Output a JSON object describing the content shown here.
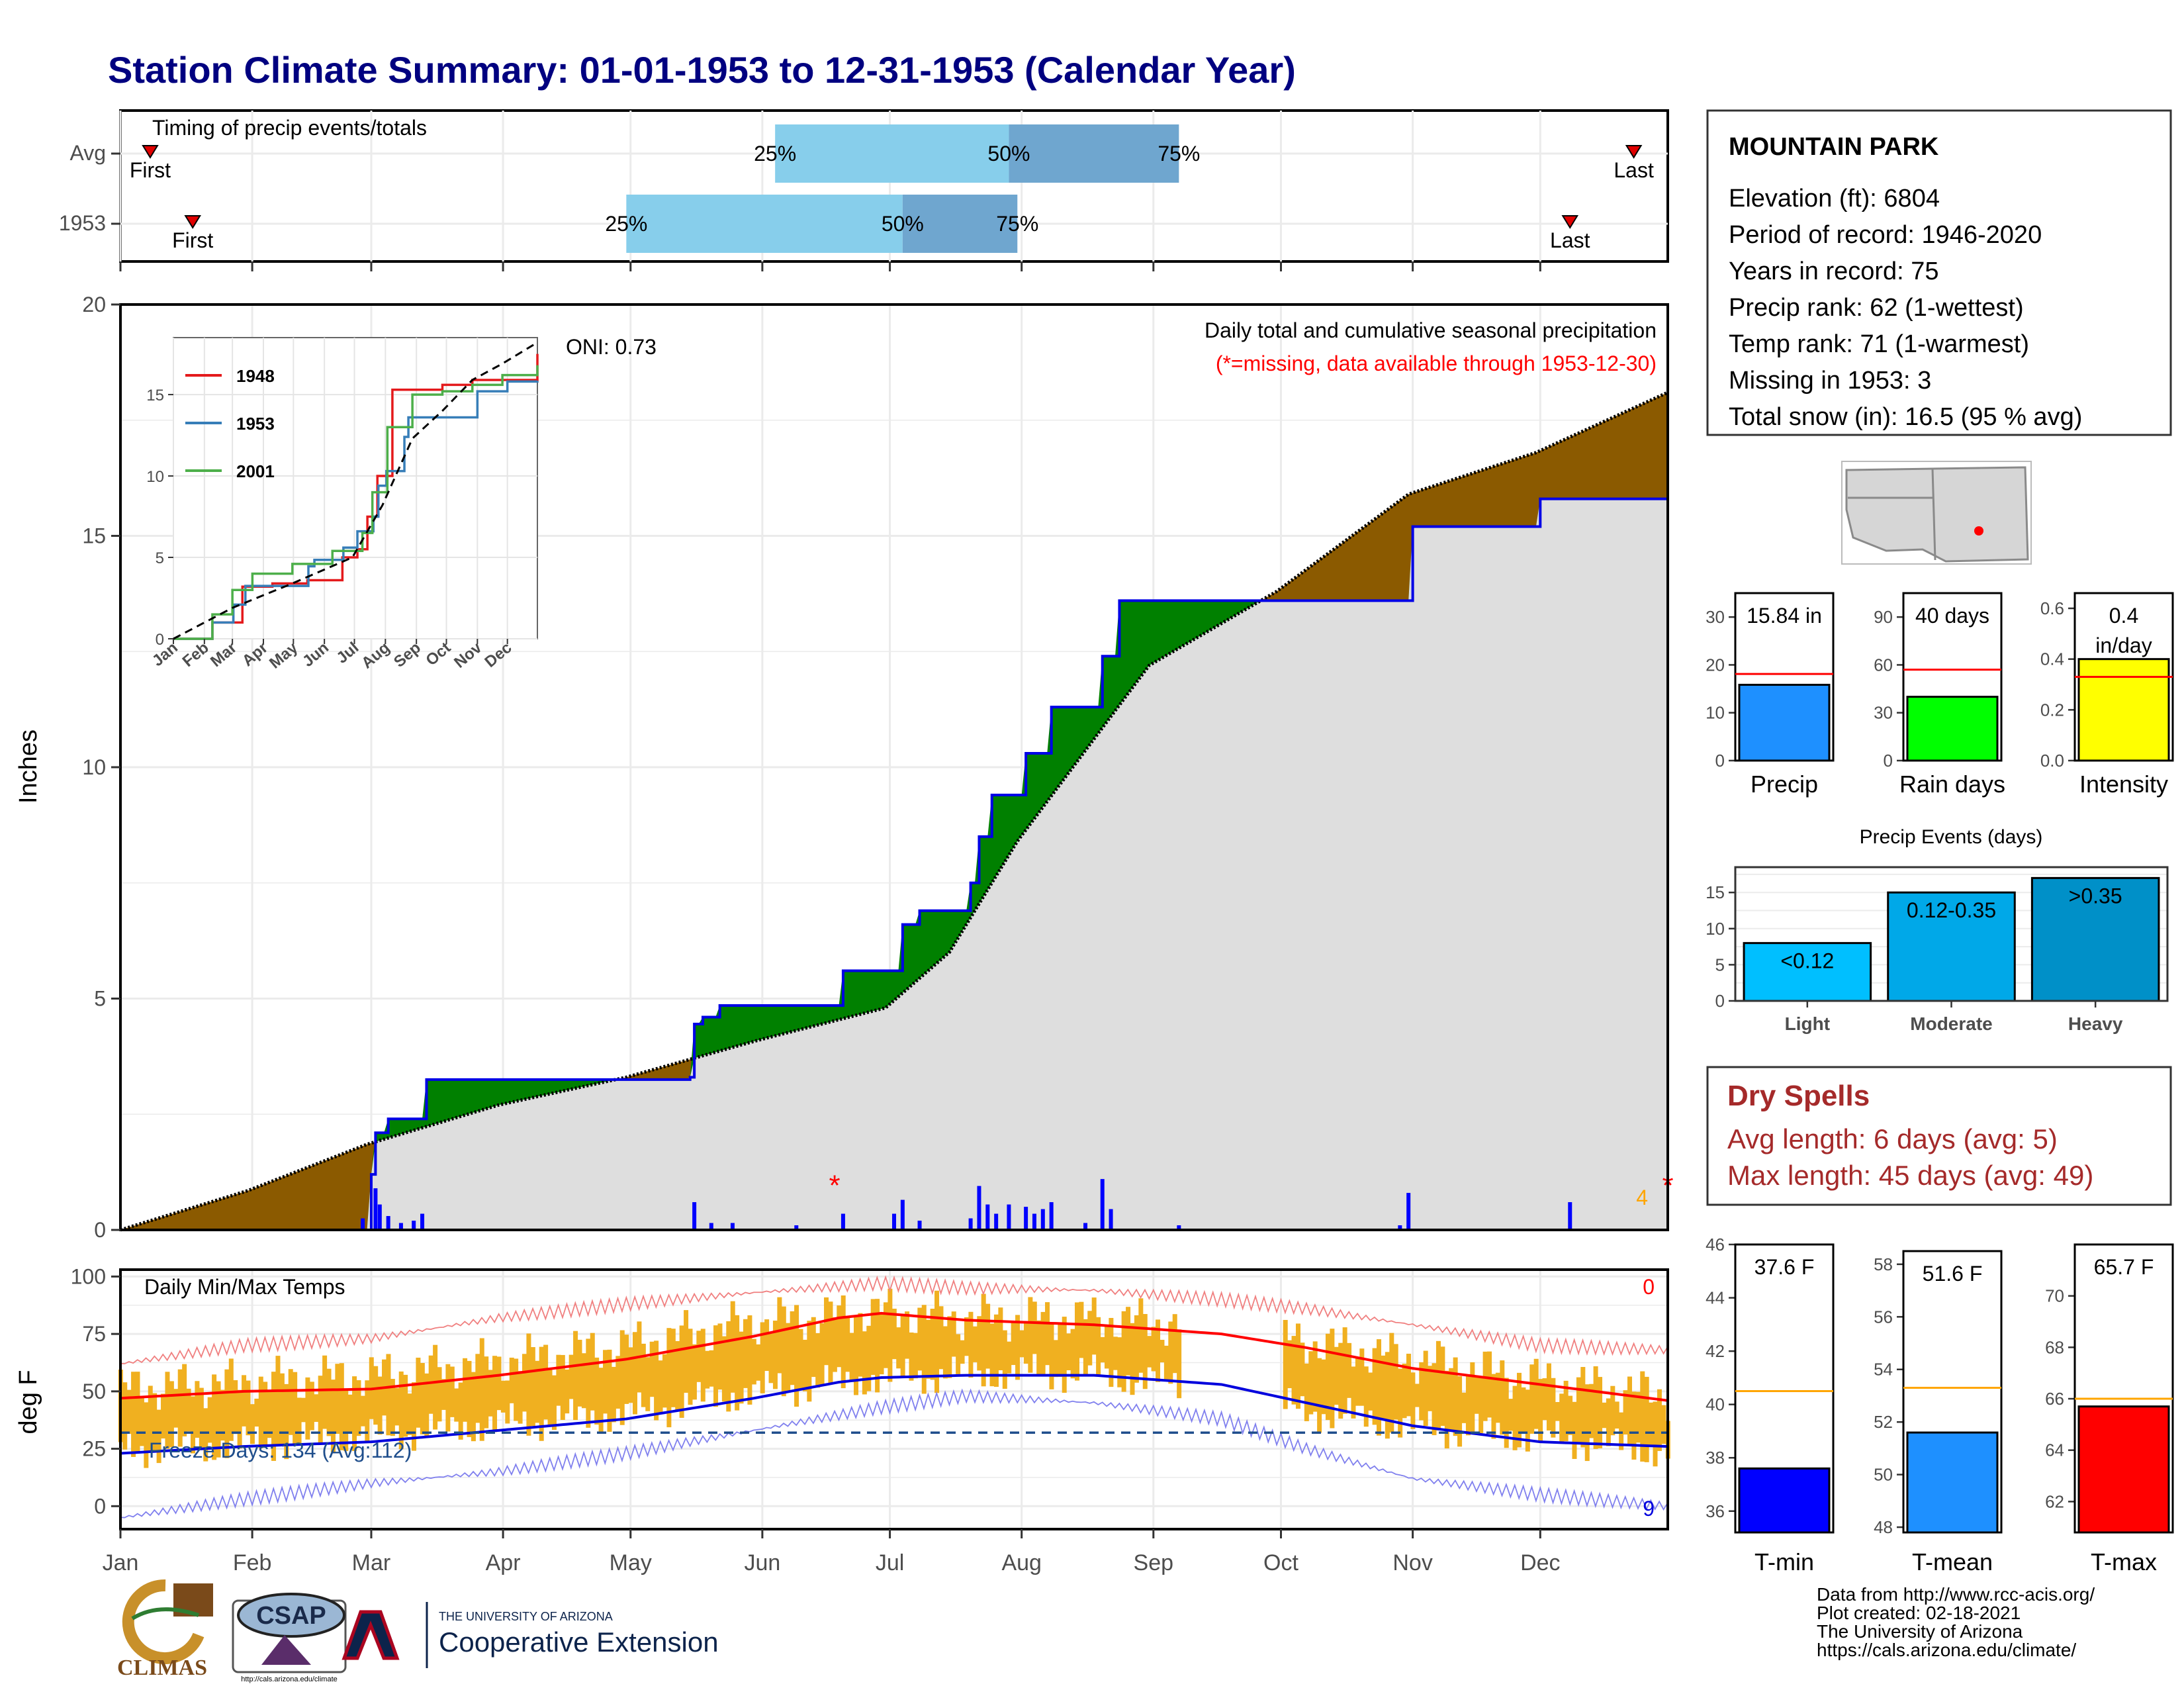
{
  "title": "Station Climate Summary: 01-01-1953 to 12-31-1953 (Calendar Year)",
  "timing": {
    "label": "Timing of precip events/totals",
    "rows": [
      {
        "name": "Avg",
        "first_day": 8,
        "p25_day": 155,
        "p50_day": 210,
        "p75_day": 250,
        "last_day": 357
      },
      {
        "name": "1953",
        "first_day": 18,
        "p25_day": 120,
        "p50_day": 185,
        "p75_day": 212,
        "last_day": 342
      }
    ],
    "first_label": "First",
    "last_label": "Last",
    "pct_labels": [
      "25%",
      "50%",
      "75%"
    ],
    "colors": {
      "early": "#87ceeb",
      "late": "#6fa6cf",
      "marker": "#e00000"
    }
  },
  "station": {
    "name": "MOUNTAIN PARK",
    "lines": [
      "Elevation (ft): 6804",
      "Period of record: 1946-2020",
      "Years in record: 75",
      "Precip rank: 62 (1-wettest)",
      "Temp rank: 71 (1-warmest)",
      "Missing in 1953: 3",
      "Total snow (in): 16.5 (95 % avg)"
    ]
  },
  "chart_data": [
    {
      "id": "cumulative-precip",
      "type": "area",
      "ylabel": "Inches",
      "ylim": [
        0,
        20
      ],
      "yticks": [
        0,
        5,
        10,
        15,
        20
      ],
      "months": [
        "Jan",
        "Feb",
        "Mar",
        "Apr",
        "May",
        "Jun",
        "Jul",
        "Aug",
        "Sep",
        "Oct",
        "Nov",
        "Dec"
      ],
      "annotation_title": "Daily total and cumulative seasonal precipitation",
      "annotation_missing": "(*=missing, data available through 1953-12-30)",
      "oni_label": "ONI: 0.73",
      "corner_count": "4",
      "series": [
        {
          "name": "observed cumulative",
          "x_day": [
            1,
            60,
            61,
            64,
            73,
            135,
            136,
            138,
            142,
            170,
            171,
            183,
            185,
            189,
            201,
            203,
            206,
            214,
            220,
            230,
            232,
            236,
            274,
            305,
            335,
            365
          ],
          "y": [
            0.0,
            1.2,
            2.1,
            2.4,
            3.25,
            3.3,
            4.45,
            4.6,
            4.85,
            4.85,
            5.6,
            5.6,
            6.6,
            6.9,
            7.5,
            8.5,
            9.4,
            10.3,
            11.3,
            11.3,
            12.4,
            13.6,
            13.6,
            15.2,
            15.8,
            15.84
          ]
        },
        {
          "name": "average cumulative",
          "x_day": [
            1,
            31,
            59,
            90,
            120,
            151,
            181,
            196,
            212,
            243,
            273,
            304,
            334,
            365
          ],
          "y": [
            0.0,
            0.85,
            1.85,
            2.7,
            3.3,
            4.1,
            4.8,
            6.0,
            8.4,
            12.2,
            13.8,
            15.9,
            16.8,
            18.1
          ]
        }
      ],
      "daily_precip": [
        {
          "day": 58,
          "value": 0.25
        },
        {
          "day": 61,
          "value": 0.9
        },
        {
          "day": 62,
          "value": 0.55
        },
        {
          "day": 64,
          "value": 0.3
        },
        {
          "day": 67,
          "value": 0.15
        },
        {
          "day": 70,
          "value": 0.2
        },
        {
          "day": 72,
          "value": 0.35
        },
        {
          "day": 136,
          "value": 0.6
        },
        {
          "day": 140,
          "value": 0.15
        },
        {
          "day": 145,
          "value": 0.15
        },
        {
          "day": 160,
          "value": 0.1
        },
        {
          "day": 171,
          "value": 0.35
        },
        {
          "day": 183,
          "value": 0.35
        },
        {
          "day": 185,
          "value": 0.65
        },
        {
          "day": 189,
          "value": 0.2
        },
        {
          "day": 201,
          "value": 0.25
        },
        {
          "day": 203,
          "value": 0.95
        },
        {
          "day": 205,
          "value": 0.55
        },
        {
          "day": 207,
          "value": 0.35
        },
        {
          "day": 210,
          "value": 0.55
        },
        {
          "day": 214,
          "value": 0.5
        },
        {
          "day": 216,
          "value": 0.35
        },
        {
          "day": 218,
          "value": 0.45
        },
        {
          "day": 220,
          "value": 0.6
        },
        {
          "day": 228,
          "value": 0.15
        },
        {
          "day": 232,
          "value": 1.1
        },
        {
          "day": 234,
          "value": 0.45
        },
        {
          "day": 250,
          "value": 0.1
        },
        {
          "day": 302,
          "value": 0.1
        },
        {
          "day": 304,
          "value": 0.8
        },
        {
          "day": 342,
          "value": 0.6
        }
      ],
      "missing_days": [
        169,
        365
      ],
      "colors": {
        "surplus": "#008000",
        "deficit": "#8b5a00",
        "base": "#dedede",
        "observed_line": "#0000e6",
        "bars": "#0000ff",
        "missing": "#ff0000"
      }
    },
    {
      "id": "inset-cumulative",
      "type": "line",
      "months": [
        "Jan",
        "Feb",
        "Mar",
        "Apr",
        "May",
        "Jun",
        "Jul",
        "Aug",
        "Sep",
        "Oct",
        "Nov",
        "Dec"
      ],
      "yticks": [
        0,
        5,
        10,
        15
      ],
      "ylim": [
        0,
        18.5
      ],
      "series": [
        {
          "name": "1948",
          "color": "#e41a1c",
          "x_day": [
            1,
            40,
            70,
            100,
            135,
            170,
            185,
            195,
            205,
            220,
            240,
            270,
            300,
            340,
            365
          ],
          "y": [
            0,
            1.0,
            3.2,
            3.4,
            3.6,
            5.0,
            5.5,
            7.5,
            10.0,
            15.3,
            15.3,
            15.6,
            15.9,
            15.9,
            17.5
          ]
        },
        {
          "name": "1953",
          "color": "#377eb8",
          "x_day": [
            1,
            40,
            61,
            73,
            136,
            142,
            171,
            185,
            201,
            206,
            214,
            232,
            236,
            274,
            305,
            335,
            365
          ],
          "y": [
            0,
            1.0,
            2.1,
            3.25,
            4.45,
            4.85,
            5.6,
            6.6,
            7.5,
            9.4,
            10.3,
            12.4,
            13.6,
            13.6,
            15.2,
            15.8,
            15.84
          ]
        },
        {
          "name": "2001",
          "color": "#4daf4a",
          "x_day": [
            1,
            40,
            60,
            80,
            120,
            160,
            190,
            200,
            215,
            240,
            270,
            300,
            330,
            365
          ],
          "y": [
            0,
            1.5,
            3.0,
            4.0,
            4.6,
            5.4,
            6.5,
            9.0,
            13.0,
            15.0,
            15.2,
            15.6,
            16.2,
            16.8
          ]
        },
        {
          "name": "average",
          "color": "#000000",
          "x_day": [
            1,
            60,
            120,
            180,
            210,
            240,
            270,
            300,
            330,
            365
          ],
          "y": [
            0,
            1.9,
            3.4,
            5.0,
            8.2,
            12.3,
            14.0,
            15.9,
            16.9,
            18.2
          ]
        }
      ]
    },
    {
      "id": "daily-temps",
      "type": "bar",
      "title": "Daily Min/Max Temps",
      "ylabel": "deg F",
      "ylim": [
        -10,
        103
      ],
      "yticks": [
        0,
        25,
        50,
        75,
        100
      ],
      "freeze_label": "Freeze Days: 134 (Avg:112)",
      "freeze_line": 32,
      "count_top": "0",
      "count_bottom": "9",
      "normal_max": {
        "x_day": [
          1,
          30,
          60,
          90,
          120,
          150,
          170,
          180,
          200,
          230,
          260,
          280,
          305,
          335,
          365
        ],
        "y": [
          47,
          50,
          51,
          57,
          64,
          74,
          82,
          84,
          81,
          79,
          75,
          69,
          60,
          53,
          46
        ]
      },
      "normal_min": {
        "x_day": [
          1,
          30,
          60,
          90,
          120,
          150,
          170,
          180,
          200,
          230,
          260,
          280,
          305,
          335,
          365
        ],
        "y": [
          23,
          26,
          28,
          33,
          38,
          47,
          54,
          56,
          57,
          57,
          53,
          45,
          35,
          28,
          26
        ]
      },
      "record_max": {
        "x_day": [
          1,
          30,
          60,
          90,
          120,
          150,
          180,
          200,
          230,
          260,
          280,
          305,
          335,
          365
        ],
        "y": [
          62,
          70,
          73,
          82,
          88,
          93,
          97,
          95,
          94,
          90,
          86,
          79,
          70,
          68
        ]
      },
      "record_min": {
        "x_day": [
          1,
          30,
          60,
          90,
          120,
          150,
          180,
          200,
          230,
          260,
          280,
          305,
          335,
          365
        ],
        "y": [
          -5,
          3,
          10,
          15,
          23,
          33,
          43,
          48,
          45,
          38,
          25,
          12,
          5,
          0
        ]
      },
      "observed_max": {
        "x_day": [
          1,
          30,
          60,
          90,
          120,
          150,
          180,
          200,
          230,
          250,
          275,
          305,
          335,
          365
        ],
        "y": [
          51,
          54,
          57,
          63,
          70,
          80,
          85,
          82,
          82,
          79,
          73,
          64,
          55,
          48
        ]
      },
      "observed_min": {
        "x_day": [
          1,
          30,
          60,
          90,
          120,
          150,
          180,
          200,
          230,
          250,
          275,
          305,
          335,
          365
        ],
        "y": [
          25,
          27,
          31,
          36,
          40,
          50,
          56,
          58,
          58,
          53,
          43,
          35,
          30,
          24
        ]
      },
      "missing_range_days": [
        251,
        274
      ],
      "colors": {
        "bars": "#f0b020",
        "normal_max": "#ff0000",
        "normal_min": "#0000dd",
        "record_max": "#f08080",
        "record_min": "#8080ee",
        "freeze": "#1f4e8c"
      }
    },
    {
      "id": "precip-gauge",
      "type": "bar",
      "label": "Precip",
      "value": 15.84,
      "value_label": "15.84 in",
      "avg": 18.1,
      "ylim": [
        0,
        35
      ],
      "yticks": [
        0,
        10,
        20,
        30
      ],
      "color": "#1e90ff"
    },
    {
      "id": "raindays-gauge",
      "type": "bar",
      "label": "Rain days",
      "value": 40,
      "value_label": "40 days",
      "avg": 57,
      "ylim": [
        0,
        105
      ],
      "yticks": [
        0,
        30,
        60,
        90
      ],
      "color": "#00ff00"
    },
    {
      "id": "intensity-gauge",
      "type": "bar",
      "label": "Intensity",
      "value": 0.4,
      "value_label_1": "0.4",
      "value_label_2": "in/day",
      "avg": 0.33,
      "ylim": [
        0,
        0.66
      ],
      "yticks": [
        0.0,
        0.2,
        0.4,
        0.6
      ],
      "ytick_labels": [
        "0.0",
        "0.2",
        "0.4",
        "0.6"
      ],
      "color": "#ffff00"
    },
    {
      "id": "precip-events",
      "type": "bar",
      "title": "Precip Events (days)",
      "categories": [
        "Light",
        "Moderate",
        "Heavy"
      ],
      "values": [
        8,
        15,
        17
      ],
      "bar_labels": [
        "<0.12",
        "0.12-0.35",
        ">0.35"
      ],
      "ylim": [
        0,
        18.5
      ],
      "yticks": [
        0,
        5,
        10,
        15
      ],
      "colors": [
        "#00bfff",
        "#00a8e8",
        "#0090c8"
      ]
    },
    {
      "id": "tmin-gauge",
      "type": "bar",
      "label": "T-min",
      "value": 37.6,
      "value_label": "37.6 F",
      "avg": 40.5,
      "ylim": [
        35.2,
        46
      ],
      "yticks": [
        36,
        38,
        40,
        42,
        44,
        46
      ],
      "color": "#0000ff"
    },
    {
      "id": "tmean-gauge",
      "type": "bar",
      "label": "T-mean",
      "value": 51.6,
      "value_label": "51.6 F",
      "avg": 53.3,
      "ylim": [
        47.8,
        58.5
      ],
      "yticks": [
        48,
        50,
        52,
        54,
        56,
        58
      ],
      "color": "#1e90ff"
    },
    {
      "id": "tmax-gauge",
      "type": "bar",
      "label": "T-max",
      "value": 65.7,
      "value_label": "65.7 F",
      "avg": 66.0,
      "ylim": [
        60.8,
        72
      ],
      "yticks": [
        62,
        64,
        66,
        68,
        70
      ],
      "color": "#ff0000"
    }
  ],
  "dry_spells": {
    "title": "Dry Spells",
    "avg_line": "Avg length: 6 days (avg: 5)",
    "max_line": "Max length: 45 days (avg: 49)"
  },
  "logos": {
    "climas": "CLIMAS",
    "csap": "CSAP",
    "csap_url": "http://cals.arizona.edu/climate",
    "ua_line1": "THE UNIVERSITY OF ARIZONA",
    "ua_line2": "Cooperative Extension"
  },
  "footer": [
    "Data from http://www.rcc-acis.org/",
    "Plot created: 02-18-2021",
    "The University of Arizona",
    "https://cals.arizona.edu/climate/"
  ]
}
